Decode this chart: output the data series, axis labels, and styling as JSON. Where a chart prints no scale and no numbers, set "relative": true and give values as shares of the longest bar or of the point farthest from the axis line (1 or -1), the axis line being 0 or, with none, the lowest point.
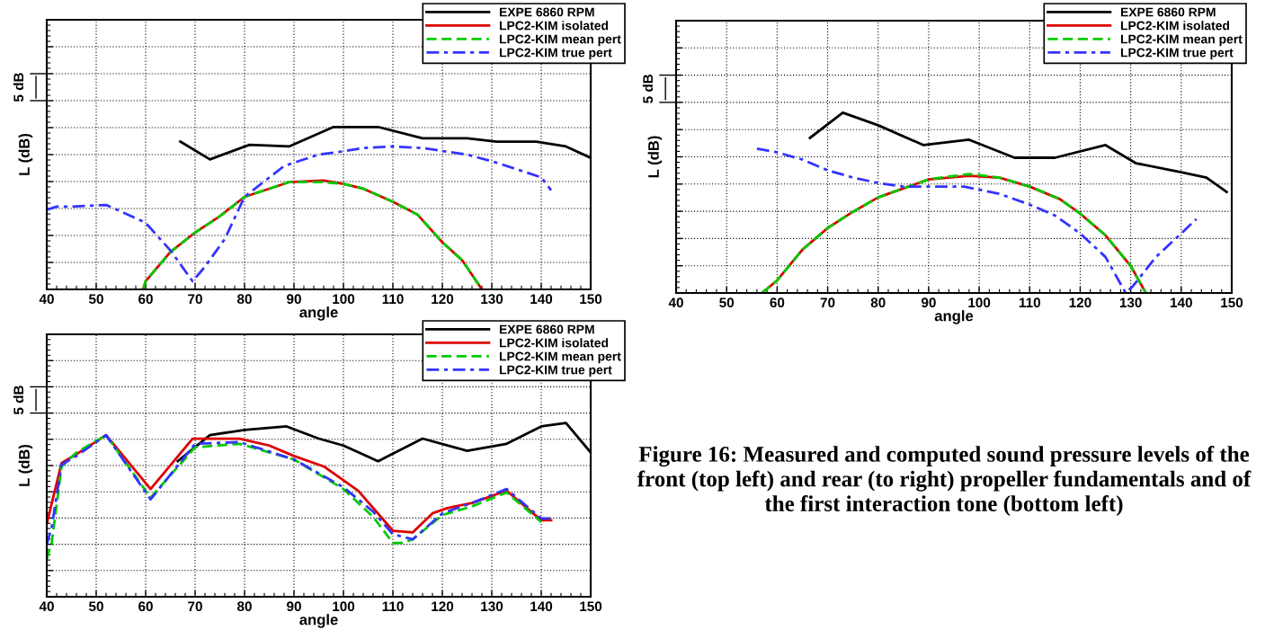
{
  "chart_data": [
    {
      "type": "line",
      "relative": true,
      "xlabel": "angle",
      "ylabel": "L (dB)",
      "xlim": [
        40,
        150
      ],
      "xticks": [
        40,
        50,
        60,
        70,
        80,
        90,
        100,
        110,
        120,
        130,
        140,
        150
      ],
      "grid": true,
      "legend": "top right",
      "annotations": [
        "5 dB"
      ],
      "series": [
        {
          "name": "EXPE 6860 RPM",
          "color": "#000000",
          "line_style": "solid",
          "x": [
            67,
            73,
            81,
            89,
            98,
            107,
            116,
            125,
            131,
            139,
            145,
            150
          ],
          "values": [
            0.91,
            0.8,
            0.89,
            0.88,
            1.0,
            1.0,
            0.93,
            0.93,
            0.91,
            0.91,
            0.88,
            0.81
          ]
        },
        {
          "name": "LPC2-KIM isolated",
          "color": "#dd0000",
          "line_style": "solid",
          "x": [
            59.5,
            60,
            65,
            70,
            75,
            80,
            85,
            89,
            96,
            100,
            104,
            110,
            115,
            120,
            124,
            128
          ],
          "values": [
            0,
            0.05,
            0.23,
            0.35,
            0.45,
            0.57,
            0.62,
            0.66,
            0.67,
            0.65,
            0.62,
            0.54,
            0.46,
            0.29,
            0.18,
            0
          ]
        },
        {
          "name": "LPC2-KIM mean pert",
          "color": "#00cc00",
          "line_style": "dashed",
          "x": [
            59.5,
            60,
            65,
            70,
            75,
            80,
            85,
            89,
            96,
            100,
            104,
            110,
            115,
            120,
            124,
            128
          ],
          "values": [
            0,
            0.05,
            0.23,
            0.35,
            0.45,
            0.57,
            0.62,
            0.66,
            0.66,
            0.65,
            0.62,
            0.54,
            0.46,
            0.29,
            0.18,
            0
          ]
        },
        {
          "name": "LPC2-KIM true pert",
          "color": "#3333ff",
          "line_style": "dashdot",
          "x": [
            40,
            42,
            45,
            52,
            55,
            60,
            65,
            69.5,
            72,
            76,
            80,
            88,
            95,
            100,
            104,
            110,
            116,
            125,
            131,
            135,
            140,
            142
          ],
          "values": [
            0.49,
            0.51,
            0.51,
            0.52,
            0.48,
            0.41,
            0.24,
            0.05,
            0.14,
            0.31,
            0.57,
            0.76,
            0.83,
            0.85,
            0.87,
            0.88,
            0.87,
            0.83,
            0.78,
            0.74,
            0.69,
            0.61
          ]
        }
      ]
    },
    {
      "type": "line",
      "relative": true,
      "xlabel": "angle",
      "ylabel": "L (dB)",
      "xlim": [
        40,
        150
      ],
      "xticks": [
        40,
        50,
        60,
        70,
        80,
        90,
        100,
        110,
        120,
        130,
        140,
        150
      ],
      "grid": true,
      "legend": "top right",
      "annotations": [
        "5 dB"
      ],
      "series": [
        {
          "name": "EXPE 6860 RPM",
          "color": "#000000",
          "line_style": "solid",
          "x": [
            66.5,
            73,
            80,
            89,
            98,
            107,
            115,
            125,
            131,
            140,
            145,
            149
          ],
          "values": [
            0.86,
            1.0,
            0.93,
            0.82,
            0.85,
            0.75,
            0.75,
            0.82,
            0.72,
            0.67,
            0.64,
            0.56
          ]
        },
        {
          "name": "LPC2-KIM isolated",
          "color": "#dd0000",
          "line_style": "solid",
          "x": [
            57,
            60,
            65,
            70,
            75,
            80,
            85,
            90,
            98,
            104,
            110,
            116,
            120,
            125,
            130,
            133
          ],
          "values": [
            0,
            0.07,
            0.24,
            0.36,
            0.45,
            0.53,
            0.58,
            0.63,
            0.65,
            0.64,
            0.59,
            0.52,
            0.44,
            0.32,
            0.15,
            0
          ]
        },
        {
          "name": "LPC2-KIM mean pert",
          "color": "#00cc00",
          "line_style": "dashed",
          "x": [
            57,
            60,
            65,
            70,
            75,
            80,
            85,
            90,
            98,
            104,
            110,
            116,
            120,
            125,
            130,
            133
          ],
          "values": [
            0,
            0.07,
            0.24,
            0.36,
            0.45,
            0.53,
            0.58,
            0.63,
            0.66,
            0.64,
            0.59,
            0.52,
            0.44,
            0.32,
            0.15,
            0
          ]
        },
        {
          "name": "LPC2-KIM true pert",
          "color": "#3333ff",
          "line_style": "dashdot",
          "x": [
            56,
            60,
            65,
            70,
            75,
            80,
            85,
            90,
            97,
            104,
            110,
            115,
            120,
            125,
            129,
            130.5,
            135,
            140,
            143
          ],
          "values": [
            0.8,
            0.78,
            0.74,
            0.68,
            0.64,
            0.61,
            0.59,
            0.59,
            0.59,
            0.55,
            0.49,
            0.43,
            0.33,
            0.2,
            0,
            0.04,
            0.2,
            0.33,
            0.41
          ]
        }
      ]
    },
    {
      "type": "line",
      "relative": true,
      "xlabel": "angle",
      "ylabel": "L (dB)",
      "xlim": [
        40,
        150
      ],
      "xticks": [
        40,
        50,
        60,
        70,
        80,
        90,
        100,
        110,
        120,
        130,
        140,
        150
      ],
      "grid": true,
      "legend": "top right",
      "annotations": [
        "5 dB",
        "Figure 16: Measured and computed sound pressure levels of the front (top left) and rear (to right) propeller fundamentals and of the first interaction tone (bottom left)"
      ],
      "series": [
        {
          "name": "EXPE 6860 RPM",
          "color": "#000000",
          "line_style": "solid",
          "x": [
            66.5,
            73,
            80,
            88.5,
            95,
            100,
            107,
            116,
            125,
            133,
            140,
            145,
            150
          ],
          "values": [
            0.78,
            0.93,
            0.96,
            0.98,
            0.91,
            0.87,
            0.78,
            0.91,
            0.84,
            0.88,
            0.98,
            1.0,
            0.83
          ]
        },
        {
          "name": "LPC2-KIM isolated",
          "color": "#dd0000",
          "line_style": "solid",
          "x": [
            40,
            43,
            46,
            52,
            61,
            69.5,
            79,
            85,
            90,
            96,
            100,
            103,
            110,
            114,
            118,
            121,
            126,
            133,
            140,
            142
          ],
          "values": [
            0.42,
            0.77,
            0.82,
            0.93,
            0.62,
            0.91,
            0.91,
            0.87,
            0.81,
            0.75,
            0.67,
            0.61,
            0.38,
            0.37,
            0.48,
            0.51,
            0.54,
            0.61,
            0.44,
            0.44
          ]
        },
        {
          "name": "LPC2-KIM mean pert",
          "color": "#00cc00",
          "line_style": "dashed",
          "x": [
            40,
            41,
            43,
            46,
            52,
            61,
            70,
            79,
            90,
            100,
            106,
            110,
            112,
            114,
            120,
            126,
            133,
            140
          ],
          "values": [
            0.22,
            0.31,
            0.75,
            0.83,
            0.93,
            0.57,
            0.86,
            0.88,
            0.79,
            0.62,
            0.46,
            0.31,
            0.31,
            0.33,
            0.47,
            0.52,
            0.6,
            0.43
          ]
        },
        {
          "name": "LPC2-KIM true pert",
          "color": "#3333ff",
          "line_style": "dashdot",
          "x": [
            40,
            41,
            43,
            46,
            52,
            61,
            70,
            79,
            90,
            100,
            106,
            110,
            114,
            120,
            126,
            133,
            140,
            142
          ],
          "values": [
            0.3,
            0.4,
            0.76,
            0.81,
            0.93,
            0.56,
            0.88,
            0.89,
            0.79,
            0.63,
            0.49,
            0.36,
            0.33,
            0.48,
            0.54,
            0.62,
            0.45,
            0.45
          ]
        }
      ]
    }
  ]
}
